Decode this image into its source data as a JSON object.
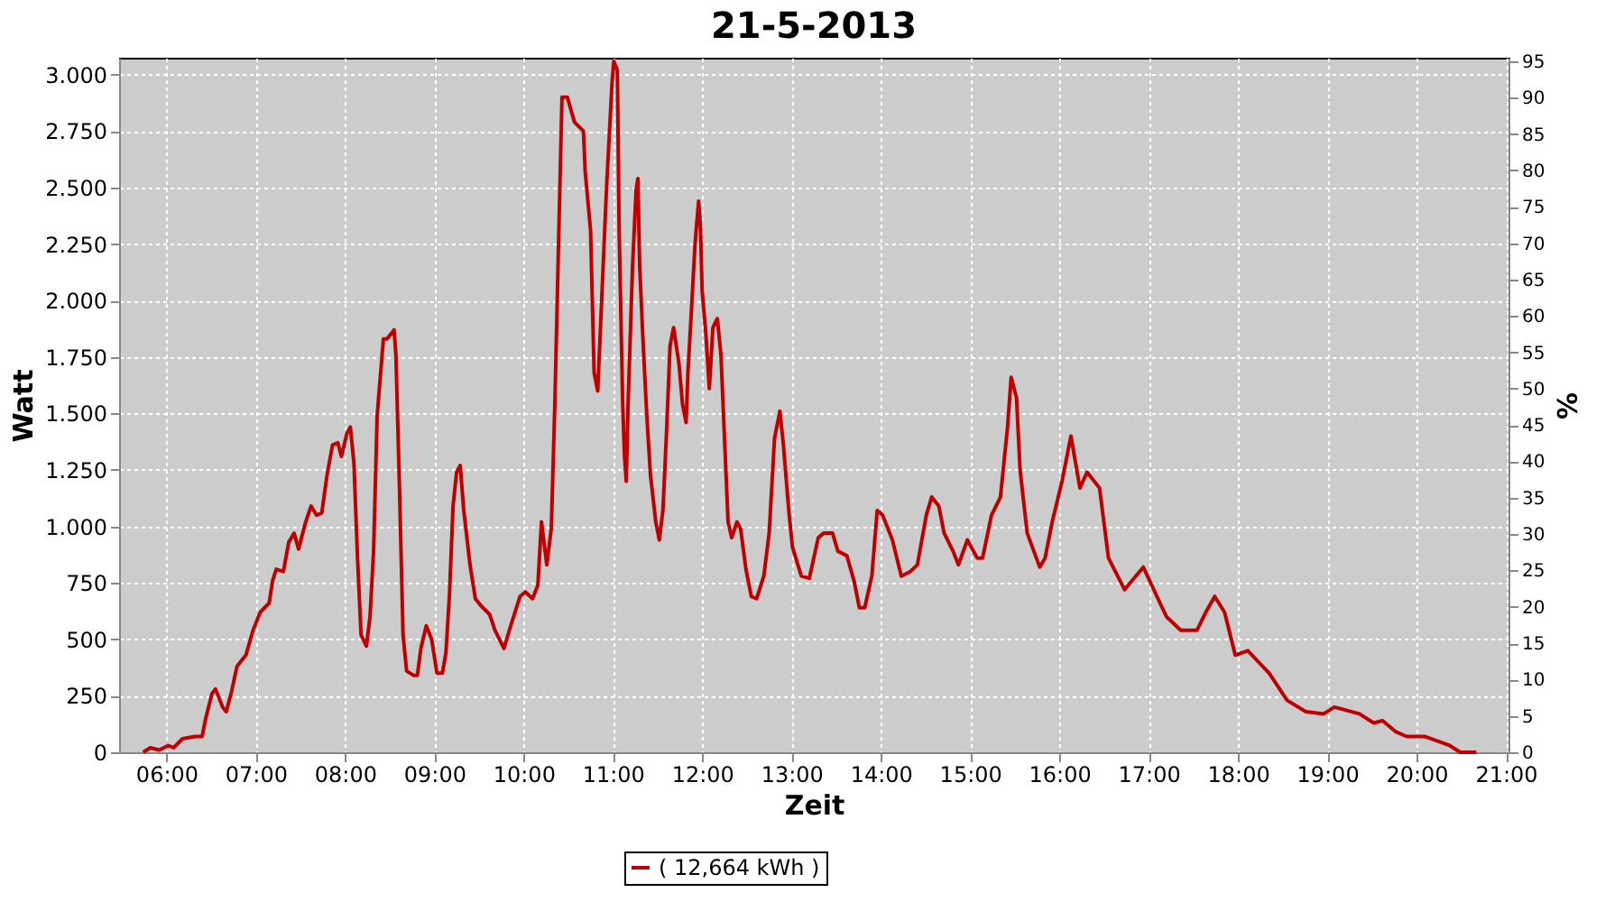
{
  "chart_data": {
    "type": "line",
    "title": "21-5-2013",
    "xlabel": "Zeit",
    "ylabel": "Watt",
    "y2label": "%",
    "xlim": [
      5.47,
      21.03
    ],
    "xticks": [
      {
        "value": 6,
        "label": "06:00"
      },
      {
        "value": 7,
        "label": "07:00"
      },
      {
        "value": 8,
        "label": "08:00"
      },
      {
        "value": 9,
        "label": "09:00"
      },
      {
        "value": 10,
        "label": "10:00"
      },
      {
        "value": 11,
        "label": "11:00"
      },
      {
        "value": 12,
        "label": "12:00"
      },
      {
        "value": 13,
        "label": "13:00"
      },
      {
        "value": 14,
        "label": "14:00"
      },
      {
        "value": 15,
        "label": "15:00"
      },
      {
        "value": 16,
        "label": "16:00"
      },
      {
        "value": 17,
        "label": "17:00"
      },
      {
        "value": 18,
        "label": "18:00"
      },
      {
        "value": 19,
        "label": "19:00"
      },
      {
        "value": 20,
        "label": "20:00"
      },
      {
        "value": 21,
        "label": "21:00"
      }
    ],
    "ylim": [
      0,
      3075
    ],
    "yticks": [
      0,
      250,
      500,
      750,
      {
        "value": 1000,
        "label": "1.000"
      },
      {
        "value": 1250,
        "label": "1.250"
      },
      {
        "value": 1500,
        "label": "1.500"
      },
      {
        "value": 1750,
        "label": "1.750"
      },
      {
        "value": 2000,
        "label": "2.000"
      },
      {
        "value": 2250,
        "label": "2.250"
      },
      {
        "value": 2500,
        "label": "2.500"
      },
      {
        "value": 2750,
        "label": "2.750"
      },
      {
        "value": 3000,
        "label": "3.000"
      }
    ],
    "y2lim": [
      0,
      95.5
    ],
    "y2ticks": [
      0,
      5,
      10,
      15,
      20,
      25,
      30,
      35,
      40,
      45,
      50,
      55,
      60,
      65,
      70,
      75,
      80,
      85,
      90,
      95
    ],
    "grid": true,
    "legend": "bottom",
    "marker": "none",
    "line_style": "solid",
    "x": [
      5.74,
      5.82,
      5.92,
      6.02,
      6.08,
      6.18,
      6.32,
      6.4,
      6.44,
      6.51,
      6.55,
      6.63,
      6.67,
      6.73,
      6.79,
      6.89,
      6.97,
      7.05,
      7.15,
      7.19,
      7.23,
      7.31,
      7.37,
      7.43,
      7.48,
      7.56,
      7.62,
      7.68,
      7.74,
      7.8,
      7.86,
      7.92,
      7.96,
      8.02,
      8.06,
      8.1,
      8.14,
      8.18,
      8.24,
      8.28,
      8.32,
      8.36,
      8.43,
      8.47,
      8.55,
      8.57,
      8.61,
      8.65,
      8.69,
      8.77,
      8.81,
      8.85,
      8.91,
      8.97,
      9.03,
      9.09,
      9.13,
      9.17,
      9.21,
      9.25,
      9.29,
      9.33,
      9.4,
      9.46,
      9.52,
      9.62,
      9.68,
      9.78,
      9.84,
      9.96,
      10.02,
      10.1,
      10.16,
      10.2,
      10.26,
      10.31,
      10.35,
      10.39,
      10.43,
      10.49,
      10.57,
      10.67,
      10.69,
      10.75,
      10.79,
      10.83,
      10.87,
      10.93,
      10.99,
      11.01,
      11.05,
      11.07,
      11.11,
      11.13,
      11.15,
      11.17,
      11.22,
      11.26,
      11.28,
      11.3,
      11.34,
      11.38,
      11.42,
      11.48,
      11.52,
      11.56,
      11.6,
      11.64,
      11.68,
      11.74,
      11.78,
      11.82,
      11.84,
      11.88,
      11.92,
      11.96,
      11.98,
      12.0,
      12.04,
      12.08,
      12.12,
      12.17,
      12.21,
      12.25,
      12.29,
      12.33,
      12.39,
      12.43,
      12.49,
      12.55,
      12.61,
      12.69,
      12.75,
      12.81,
      12.87,
      12.91,
      12.97,
      13.01,
      13.11,
      13.2,
      13.3,
      13.36,
      13.46,
      13.52,
      13.62,
      13.7,
      13.76,
      13.82,
      13.9,
      13.96,
      14.02,
      14.13,
      14.23,
      14.33,
      14.41,
      14.51,
      14.57,
      14.65,
      14.71,
      14.81,
      14.87,
      14.97,
      15.08,
      15.14,
      15.24,
      15.34,
      15.42,
      15.46,
      15.52,
      15.56,
      15.64,
      15.78,
      15.84,
      15.92,
      16.03,
      16.13,
      16.23,
      16.31,
      16.45,
      16.55,
      16.73,
      16.94,
      17.14,
      17.2,
      17.36,
      17.54,
      17.64,
      17.74,
      17.85,
      17.97,
      18.11,
      18.35,
      18.55,
      18.76,
      18.96,
      19.08,
      19.36,
      19.52,
      19.62,
      19.77,
      19.89,
      20.09,
      20.23,
      20.37,
      20.49,
      20.67
    ],
    "series": [
      {
        "name": "( 12,664 kWh )",
        "color": "#c00000",
        "values": [
          0,
          20,
          10,
          30,
          20,
          60,
          70,
          70,
          150,
          260,
          280,
          200,
          180,
          270,
          380,
          430,
          540,
          620,
          660,
          760,
          810,
          800,
          930,
          970,
          900,
          1020,
          1090,
          1050,
          1060,
          1230,
          1360,
          1370,
          1310,
          1410,
          1440,
          1280,
          860,
          520,
          470,
          600,
          890,
          1490,
          1830,
          1830,
          1870,
          1760,
          1170,
          520,
          360,
          340,
          340,
          460,
          560,
          500,
          350,
          350,
          440,
          700,
          1090,
          1240,
          1270,
          1070,
          830,
          680,
          650,
          610,
          540,
          460,
          540,
          690,
          710,
          680,
          740,
          1020,
          830,
          990,
          1540,
          2230,
          2900,
          2900,
          2790,
          2750,
          2570,
          2310,
          1680,
          1600,
          1960,
          2510,
          2960,
          3060,
          3020,
          2310,
          1540,
          1310,
          1200,
          1540,
          2150,
          2490,
          2540,
          2150,
          1800,
          1490,
          1230,
          1020,
          940,
          1070,
          1410,
          1800,
          1880,
          1720,
          1540,
          1460,
          1680,
          1960,
          2250,
          2440,
          2330,
          2040,
          1860,
          1610,
          1880,
          1920,
          1760,
          1390,
          1020,
          950,
          1020,
          990,
          810,
          690,
          680,
          780,
          970,
          1390,
          1510,
          1360,
          1070,
          910,
          780,
          770,
          950,
          970,
          970,
          890,
          870,
          760,
          640,
          640,
          780,
          1070,
          1050,
          940,
          780,
          800,
          830,
          1050,
          1130,
          1090,
          970,
          890,
          830,
          940,
          860,
          860,
          1050,
          1130,
          1440,
          1660,
          1570,
          1250,
          970,
          820,
          860,
          1020,
          1200,
          1400,
          1170,
          1240,
          1170,
          860,
          720,
          820,
          650,
          600,
          540,
          540,
          620,
          690,
          620,
          430,
          450,
          350,
          230,
          180,
          170,
          200,
          170,
          130,
          140,
          90,
          70,
          70,
          50,
          30,
          0,
          0
        ]
      }
    ]
  }
}
